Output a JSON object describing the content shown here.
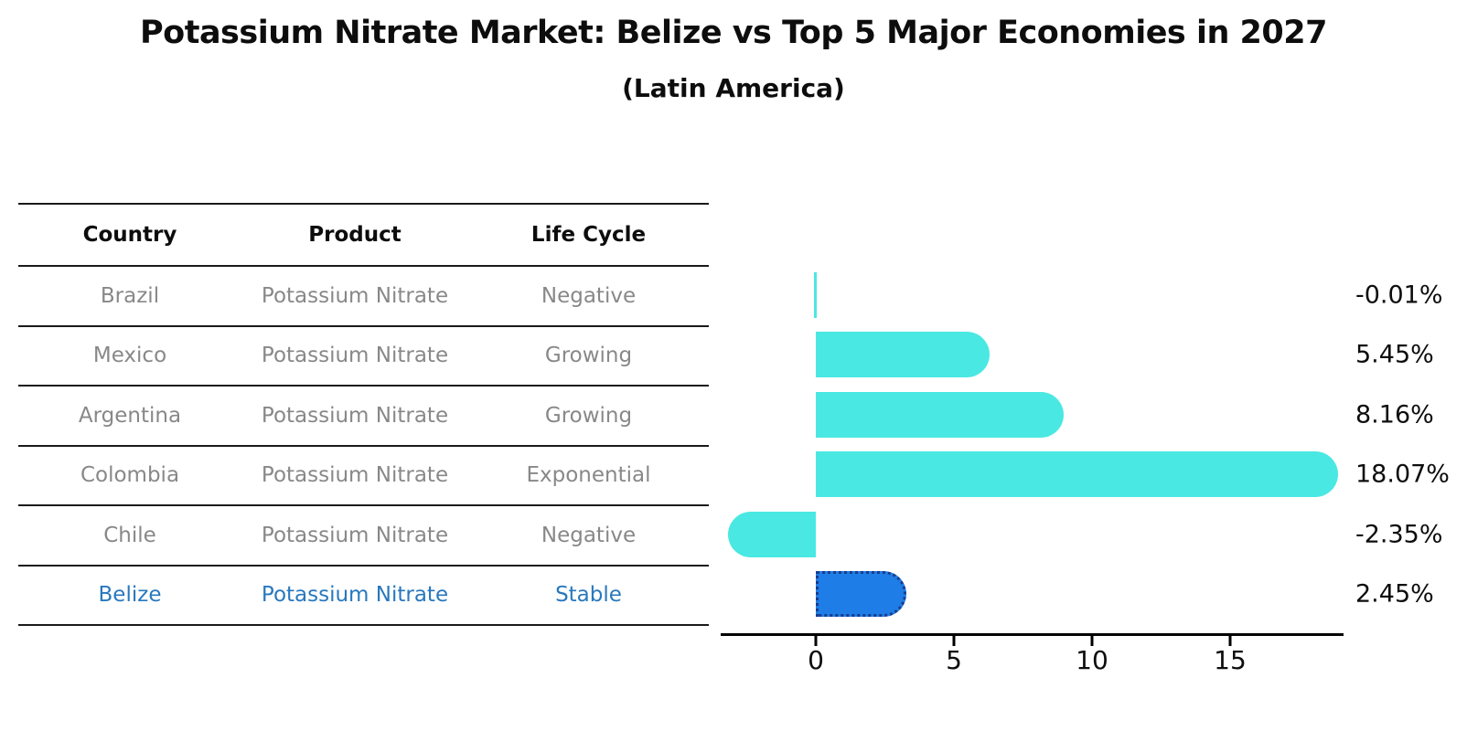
{
  "title": "Potassium Nitrate Market: Belize vs Top 5 Major Economies in 2027",
  "subtitle": "(Latin America)",
  "table": {
    "headers": [
      "Country",
      "Product",
      "Life Cycle"
    ],
    "rows": [
      {
        "country": "Brazil",
        "product": "Potassium Nitrate",
        "life_cycle": "Negative",
        "highlight": false
      },
      {
        "country": "Mexico",
        "product": "Potassium Nitrate",
        "life_cycle": "Growing",
        "highlight": false
      },
      {
        "country": "Argentina",
        "product": "Potassium Nitrate",
        "life_cycle": "Growing",
        "highlight": false
      },
      {
        "country": "Colombia",
        "product": "Potassium Nitrate",
        "life_cycle": "Exponential",
        "highlight": false
      },
      {
        "country": "Chile",
        "product": "Potassium Nitrate",
        "life_cycle": "Negative",
        "highlight": false
      },
      {
        "country": "Belize",
        "product": "Potassium Nitrate",
        "life_cycle": "Stable",
        "highlight": true
      }
    ]
  },
  "chart_data": {
    "type": "bar",
    "orientation": "horizontal",
    "categories": [
      "Brazil",
      "Mexico",
      "Argentina",
      "Colombia",
      "Chile",
      "Belize"
    ],
    "values": [
      -0.01,
      5.45,
      8.16,
      18.07,
      -2.35,
      2.45
    ],
    "value_labels": [
      "-0.01%",
      "5.45%",
      "8.16%",
      "18.07%",
      "-2.35%",
      "2.45%"
    ],
    "x_ticks": [
      "0",
      "5",
      "10",
      "15"
    ],
    "x_tick_values": [
      0,
      5,
      10,
      15
    ],
    "xlim": [
      -3.5,
      19.2
    ],
    "grid": false,
    "legend": false,
    "bar_color": "#4ae8e2",
    "highlight_index": 5,
    "highlight_color": "#1e7de6",
    "highlight_border_color": "#1b3c8c"
  },
  "colors": {
    "cyan_bar": "#4ae8e2",
    "blue_bar": "#1e7de6",
    "blue_bar_border": "#1b3c8c",
    "highlight_text": "#2878be",
    "row_text": "#888888",
    "axis": "#000000"
  }
}
